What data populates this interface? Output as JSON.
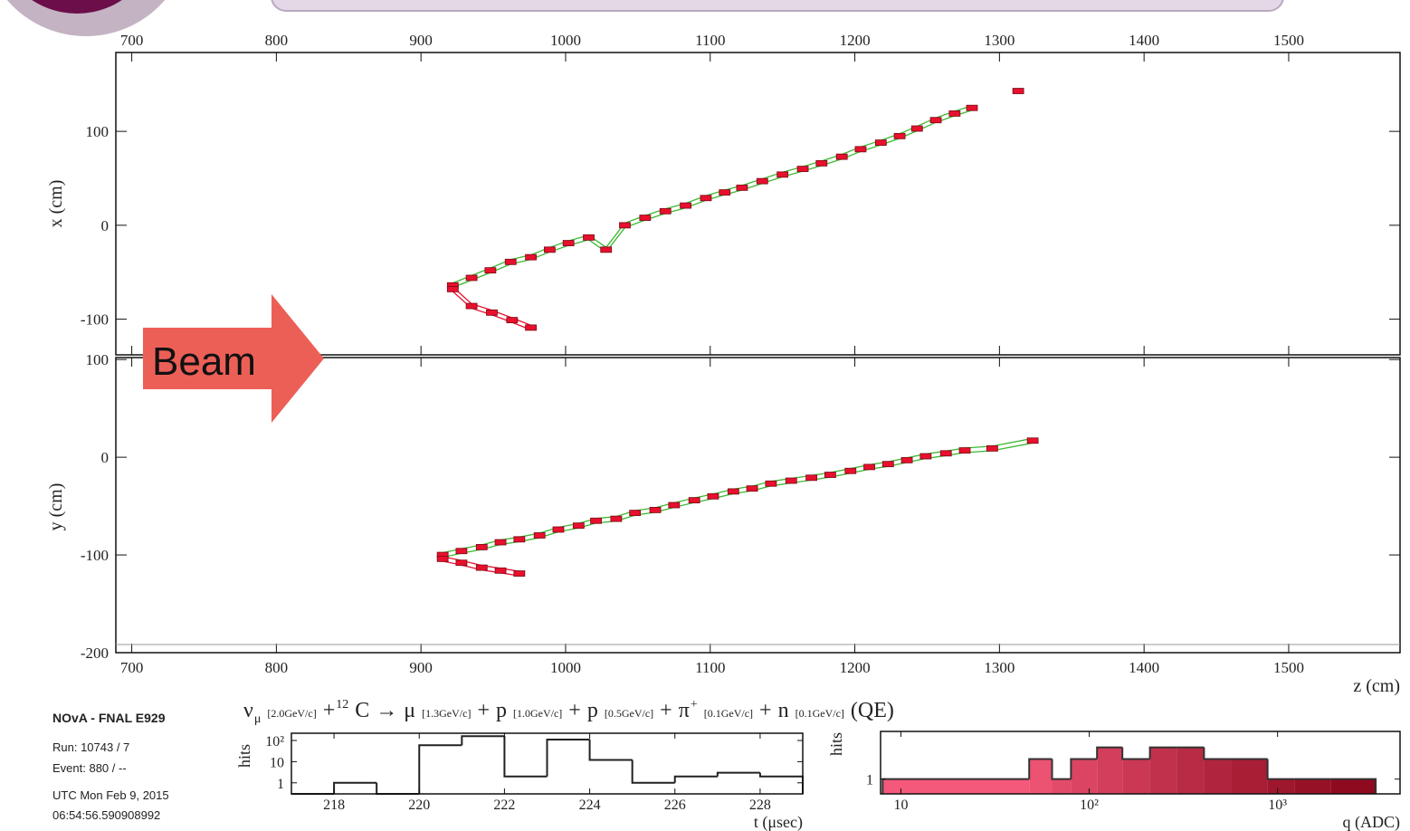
{
  "chart_data": [
    {
      "type": "track",
      "y_label": "x (cm)",
      "hit_color": "#e8102e",
      "xlim": [
        689,
        1577
      ],
      "ylim": [
        -138,
        184
      ],
      "xticks": [
        700,
        800,
        900,
        1000,
        1100,
        1200,
        1300,
        1400,
        1500
      ],
      "yticks": [
        -100,
        0,
        100
      ],
      "series": [
        {
          "color": "#3cb832",
          "x": [
            922,
            935,
            948,
            962,
            976,
            989,
            1002,
            1016,
            1028,
            1041,
            1055,
            1069,
            1083,
            1097,
            1110,
            1122,
            1136,
            1150,
            1164,
            1177,
            1191,
            1204,
            1218,
            1231,
            1243,
            1256,
            1269,
            1281
          ],
          "values": [
            -64,
            -56,
            -48,
            -39,
            -34,
            -26,
            -19,
            -13,
            -26,
            0,
            8,
            15,
            21,
            29,
            35,
            40,
            47,
            54,
            60,
            66,
            73,
            81,
            88,
            95,
            103,
            112,
            119,
            125
          ]
        },
        {
          "color": "#e8102e",
          "x": [
            922,
            935,
            949,
            963,
            976
          ],
          "values": [
            -68,
            -86,
            -93,
            -101,
            -109
          ]
        },
        {
          "color": "#e8102e",
          "x": [
            1313
          ],
          "values": [
            143
          ]
        }
      ]
    },
    {
      "type": "track",
      "x_label": "z (cm)",
      "y_label": "y (cm)",
      "hit_color": "#e8102e",
      "xlim": [
        689,
        1577
      ],
      "ylim": [
        -200,
        102
      ],
      "xticks": [
        700,
        800,
        900,
        1000,
        1100,
        1200,
        1300,
        1400,
        1500
      ],
      "yticks": [
        -200,
        -100,
        0,
        100
      ],
      "series": [
        {
          "color": "#3cb832",
          "x": [
            915,
            928,
            942,
            955,
            968,
            982,
            995,
            1009,
            1021,
            1035,
            1048,
            1062,
            1075,
            1089,
            1102,
            1116,
            1129,
            1142,
            1156,
            1170,
            1183,
            1197,
            1210,
            1223,
            1236,
            1249,
            1263,
            1276,
            1295,
            1323
          ],
          "values": [
            -100,
            -96,
            -92,
            -87,
            -84,
            -80,
            -74,
            -70,
            -65,
            -63,
            -57,
            -54,
            -49,
            -44,
            -40,
            -35,
            -32,
            -27,
            -24,
            -21,
            -18,
            -14,
            -10,
            -7,
            -3,
            1,
            4,
            7,
            9,
            17
          ]
        },
        {
          "color": "#e8102e",
          "x": [
            915,
            928,
            942,
            955,
            968
          ],
          "values": [
            -104,
            -108,
            -113,
            -116,
            -119
          ]
        }
      ]
    },
    {
      "type": "histogram",
      "x_label": "t (μsec)",
      "y_label": "hits",
      "color": "#222",
      "log_y": true,
      "bins": [
        217,
        218,
        219,
        220,
        221,
        222,
        223,
        224,
        225,
        226,
        227,
        228,
        229
      ],
      "values": [
        0,
        1,
        0,
        60,
        160,
        2,
        110,
        12,
        1,
        2,
        3,
        2
      ],
      "xlim": [
        217,
        229
      ],
      "ylim": [
        0.3,
        220
      ],
      "xticks": [
        218,
        220,
        222,
        224,
        226,
        228
      ],
      "yticks": [
        1,
        10,
        {
          "value": 100,
          "label": "10²"
        }
      ]
    },
    {
      "type": "histogram",
      "x_label": "q (ADC)",
      "y_label": "hits",
      "color": "#333",
      "fill_low": "#f4587a",
      "fill_high": "#8e0a1e",
      "log_x": true,
      "log_y": true,
      "bins": [
        8,
        48,
        63.5,
        80,
        110,
        150,
        210,
        292,
        407,
        568,
        885,
        1230,
        1920,
        3320
      ],
      "values": [
        1,
        2,
        1,
        2,
        3,
        2,
        3,
        3,
        2,
        2,
        1,
        1,
        1
      ],
      "xlim": [
        7.8,
        4470
      ],
      "ylim": [
        0.6,
        5.2
      ],
      "xticks": [
        10,
        {
          "value": 100,
          "label": "10²"
        },
        {
          "value": 1000,
          "label": "10³"
        }
      ],
      "yticks": [
        1
      ]
    }
  ],
  "banner": {
    "arrow_label": "Beam"
  },
  "reaction": [
    {
      "text": "ν",
      "style": "big"
    },
    {
      "text": "μ",
      "style": "sub"
    },
    {
      "text": "[2.0GeV/c]",
      "style": "small"
    },
    {
      "text": "+",
      "style": "big"
    },
    {
      "text": "12",
      "style": "sup"
    },
    {
      "text": "C",
      "style": "big"
    },
    {
      "text": "→",
      "style": "big"
    },
    {
      "text": "μ",
      "style": "big"
    },
    {
      "text": "[1.3GeV/c]",
      "style": "small"
    },
    {
      "text": "+",
      "style": "big"
    },
    {
      "text": "p",
      "style": "big"
    },
    {
      "text": "[1.0GeV/c]",
      "style": "small"
    },
    {
      "text": "+",
      "style": "big"
    },
    {
      "text": "p",
      "style": "big"
    },
    {
      "text": "[0.5GeV/c]",
      "style": "small"
    },
    {
      "text": "+",
      "style": "big"
    },
    {
      "text": "π",
      "style": "big"
    },
    {
      "text": "+",
      "style": "sup"
    },
    {
      "text": "[0.1GeV/c]",
      "style": "small"
    },
    {
      "text": "+",
      "style": "big"
    },
    {
      "text": "n",
      "style": "big"
    },
    {
      "text": "[0.1GeV/c]",
      "style": "small"
    },
    {
      "text": "(QE)",
      "style": "big"
    }
  ],
  "info": {
    "experiment": "NOvA - FNAL E929",
    "run": "Run:   10743 / 7",
    "event": "Event: 880 / --",
    "date": "UTC Mon Feb 9, 2015",
    "time": "06:54:56.590908992"
  }
}
